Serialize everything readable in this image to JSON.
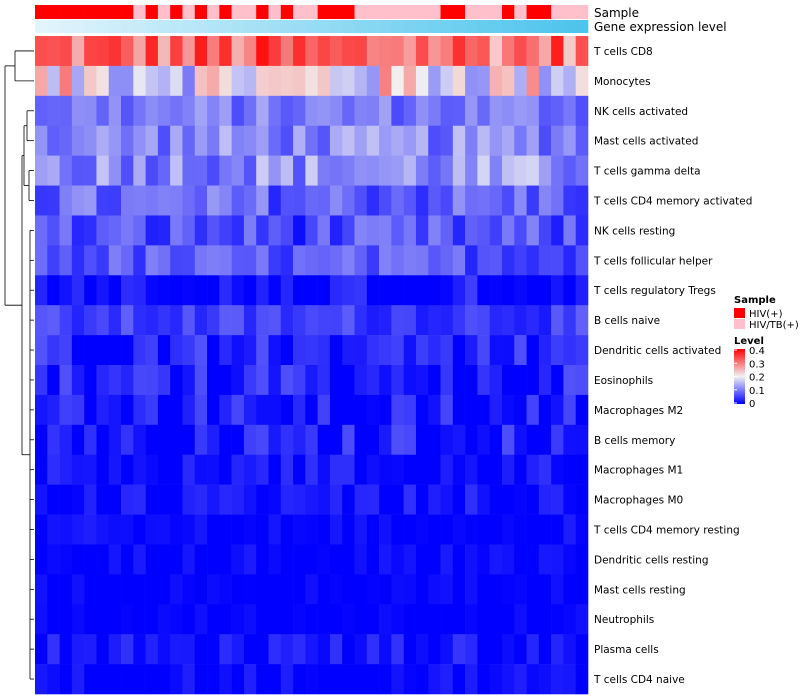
{
  "chart_data": {
    "type": "heatmap",
    "title": "",
    "annotations": {
      "sample_label": "Sample",
      "gene_label": "Gene expression level"
    },
    "rows": [
      "T cells CD8",
      "Monocytes",
      "NK cells activated",
      "Mast cells activated",
      "T cells gamma delta",
      "T cells CD4 memory activated",
      "NK cells resting",
      "T cells follicular helper",
      "T cells regulatory  Tregs",
      "B cells naive",
      "Dendritic cells activated",
      "Eosinophils",
      "Macrophages M2",
      "B cells memory",
      "Macrophages M1",
      "Macrophages M0",
      "T cells CD4 memory resting",
      "Dendritic cells resting",
      "Mast cells resting",
      "Neutrophils",
      "Plasma cells",
      "T cells CD4 naive"
    ],
    "num_columns": 45,
    "sample_groups": [
      0,
      0,
      0,
      0,
      0,
      0,
      0,
      0,
      1,
      0,
      1,
      0,
      1,
      0,
      1,
      0,
      1,
      1,
      0,
      1,
      0,
      1,
      1,
      0,
      0,
      0,
      1,
      1,
      1,
      1,
      1,
      1,
      1,
      0,
      0,
      1,
      1,
      1,
      0,
      1,
      0,
      0,
      1,
      1,
      1
    ],
    "sample_legend": {
      "title": "Sample",
      "items": [
        {
          "label": "HIV(+)",
          "color": "#FF0000"
        },
        {
          "label": "HIV/TB(+)",
          "color": "#FFC0CB"
        }
      ]
    },
    "level_legend": {
      "title": "Level",
      "ticks": [
        "0.4",
        "0.3",
        "0.2",
        "0.1",
        "0"
      ],
      "range": [
        0,
        0.4
      ],
      "colors": [
        "#0000FF",
        "#F2F2F2",
        "#FF0000"
      ]
    },
    "row_means": [
      0.31,
      0.2,
      0.1,
      0.11,
      0.12,
      0.08,
      0.06,
      0.07,
      0.03,
      0.05,
      0.04,
      0.04,
      0.03,
      0.04,
      0.02,
      0.02,
      0.01,
      0.01,
      0.005,
      0.004,
      0.02,
      0.01
    ],
    "row_spread": [
      0.08,
      0.1,
      0.04,
      0.05,
      0.06,
      0.05,
      0.05,
      0.04,
      0.03,
      0.03,
      0.03,
      0.03,
      0.03,
      0.03,
      0.02,
      0.02,
      0.015,
      0.015,
      0.01,
      0.01,
      0.025,
      0.02
    ]
  }
}
